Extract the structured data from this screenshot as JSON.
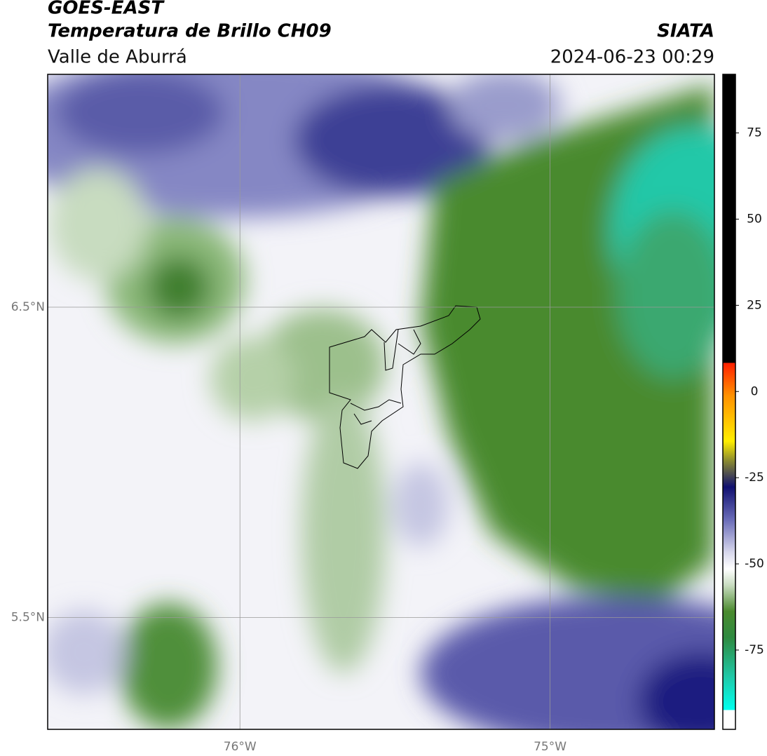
{
  "header": {
    "title": "GOES-EAST",
    "subtitle": "Temperatura de Brillo CH09",
    "source": "SIATA",
    "region": "Valle de Aburrá",
    "timestamp": "2024-06-23 00:29"
  },
  "map": {
    "lonlim": [
      -76.62,
      -74.47
    ],
    "latlim": [
      5.14,
      7.25
    ],
    "lat_ticks": [
      {
        "value": 6.5,
        "label": "6.5°N"
      },
      {
        "value": 5.5,
        "label": "5.5°N"
      }
    ],
    "lon_ticks": [
      {
        "value": -76,
        "label": "76°W"
      },
      {
        "value": -75,
        "label": "75°W"
      }
    ],
    "grid": true
  },
  "colorbar": {
    "lim": [
      -98,
      92
    ],
    "ticks": [
      75,
      50,
      25,
      0,
      -25,
      -50,
      -75
    ]
  }
}
